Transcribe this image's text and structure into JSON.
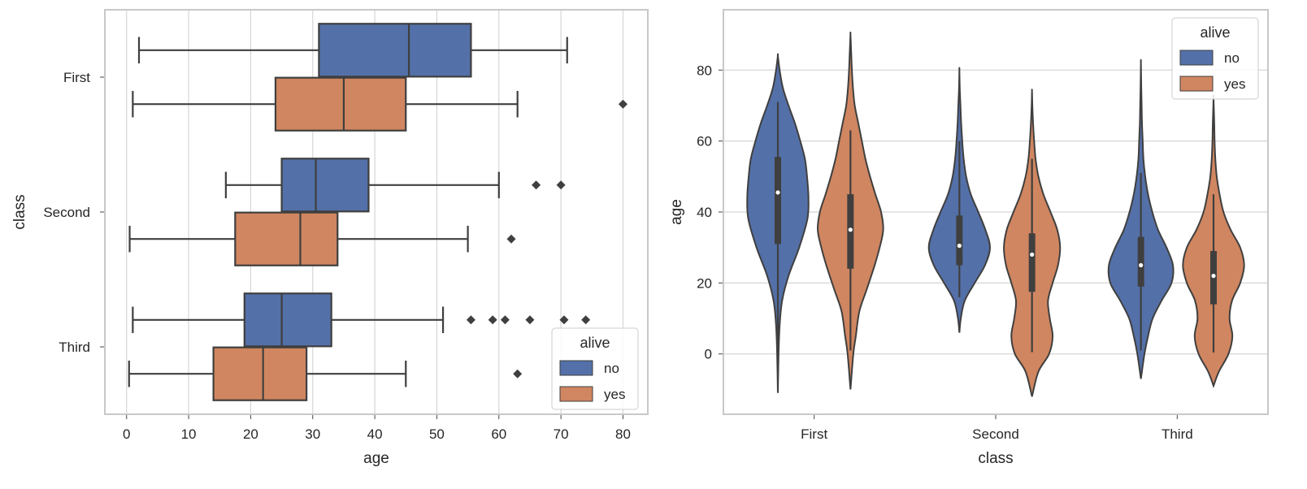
{
  "chart_data": [
    {
      "type": "boxplot",
      "orientation": "horizontal",
      "xlabel": "age",
      "ylabel": "class",
      "xlim": [
        -3.5,
        84
      ],
      "xticks": [
        0,
        10,
        20,
        30,
        40,
        50,
        60,
        70,
        80
      ],
      "categories": [
        "First",
        "Second",
        "Third"
      ],
      "hue_order": [
        "no",
        "yes"
      ],
      "grid": true,
      "legend": {
        "title": "alive",
        "position": "lower-right",
        "entries": [
          "no",
          "yes"
        ]
      },
      "boxes": [
        {
          "category": "First",
          "hue": "no",
          "whislo": 2,
          "q1": 31,
          "median": 45.5,
          "q3": 55.5,
          "whishi": 71,
          "fliers": []
        },
        {
          "category": "First",
          "hue": "yes",
          "whislo": 1,
          "q1": 24,
          "median": 35,
          "q3": 45,
          "whishi": 63,
          "fliers": [
            80
          ]
        },
        {
          "category": "Second",
          "hue": "no",
          "whislo": 16,
          "q1": 25,
          "median": 30.5,
          "q3": 39,
          "whishi": 60,
          "fliers": [
            66,
            70
          ]
        },
        {
          "category": "Second",
          "hue": "yes",
          "whislo": 0.5,
          "q1": 17.5,
          "median": 28,
          "q3": 34,
          "whishi": 55,
          "fliers": [
            62
          ]
        },
        {
          "category": "Third",
          "hue": "no",
          "whislo": 1,
          "q1": 19,
          "median": 25,
          "q3": 33,
          "whishi": 51,
          "fliers": [
            55.5,
            59,
            61,
            65,
            70.5,
            74
          ]
        },
        {
          "category": "Third",
          "hue": "yes",
          "whislo": 0.4,
          "q1": 14,
          "median": 22,
          "q3": 29,
          "whishi": 45,
          "fliers": [
            63
          ]
        }
      ]
    },
    {
      "type": "violin",
      "orientation": "vertical",
      "xlabel": "class",
      "ylabel": "age",
      "ylim": [
        -17,
        97
      ],
      "yticks": [
        0,
        20,
        40,
        60,
        80
      ],
      "categories": [
        "First",
        "Second",
        "Third"
      ],
      "hue_order": [
        "no",
        "yes"
      ],
      "grid": true,
      "legend": {
        "title": "alive",
        "position": "top-right",
        "entries": [
          "no",
          "yes"
        ]
      },
      "violins": [
        {
          "category": "First",
          "hue": "no",
          "min": -11,
          "max": 84,
          "whislo": 2,
          "q1": 31,
          "median": 45.5,
          "q3": 55.5,
          "whishi": 71,
          "density": [
            [
              -11,
              0
            ],
            [
              0,
              0.02
            ],
            [
              8,
              0.05
            ],
            [
              15,
              0.12
            ],
            [
              22,
              0.3
            ],
            [
              30,
              0.6
            ],
            [
              38,
              0.83
            ],
            [
              44,
              0.86
            ],
            [
              50,
              0.82
            ],
            [
              55,
              0.76
            ],
            [
              60,
              0.63
            ],
            [
              65,
              0.48
            ],
            [
              70,
              0.3
            ],
            [
              75,
              0.14
            ],
            [
              80,
              0.05
            ],
            [
              84,
              0
            ]
          ]
        },
        {
          "category": "First",
          "hue": "yes",
          "min": -10,
          "max": 90,
          "whislo": 1,
          "q1": 24,
          "median": 35,
          "q3": 45,
          "whishi": 63,
          "density": [
            [
              -10,
              0
            ],
            [
              0,
              0.08
            ],
            [
              5,
              0.15
            ],
            [
              12,
              0.25
            ],
            [
              18,
              0.45
            ],
            [
              25,
              0.68
            ],
            [
              30,
              0.82
            ],
            [
              35,
              0.92
            ],
            [
              40,
              0.86
            ],
            [
              45,
              0.7
            ],
            [
              50,
              0.55
            ],
            [
              55,
              0.42
            ],
            [
              60,
              0.32
            ],
            [
              65,
              0.22
            ],
            [
              70,
              0.12
            ],
            [
              75,
              0.07
            ],
            [
              80,
              0.04
            ],
            [
              85,
              0.02
            ],
            [
              90,
              0
            ]
          ]
        },
        {
          "category": "Second",
          "hue": "no",
          "min": 6,
          "max": 80,
          "whislo": 16,
          "q1": 25,
          "median": 30.5,
          "q3": 39,
          "whishi": 60,
          "density": [
            [
              6,
              0
            ],
            [
              10,
              0.04
            ],
            [
              15,
              0.15
            ],
            [
              20,
              0.43
            ],
            [
              25,
              0.72
            ],
            [
              30,
              0.86
            ],
            [
              35,
              0.73
            ],
            [
              40,
              0.53
            ],
            [
              45,
              0.32
            ],
            [
              50,
              0.19
            ],
            [
              55,
              0.12
            ],
            [
              60,
              0.08
            ],
            [
              65,
              0.05
            ],
            [
              70,
              0.03
            ],
            [
              75,
              0.01
            ],
            [
              80,
              0
            ]
          ]
        },
        {
          "category": "Second",
          "hue": "yes",
          "min": -12,
          "max": 74,
          "whislo": 0.5,
          "q1": 17.5,
          "median": 28,
          "q3": 34,
          "whishi": 55,
          "density": [
            [
              -12,
              0
            ],
            [
              -5,
              0.18
            ],
            [
              0,
              0.48
            ],
            [
              5,
              0.58
            ],
            [
              10,
              0.5
            ],
            [
              15,
              0.45
            ],
            [
              20,
              0.58
            ],
            [
              25,
              0.73
            ],
            [
              30,
              0.79
            ],
            [
              35,
              0.71
            ],
            [
              40,
              0.52
            ],
            [
              45,
              0.32
            ],
            [
              50,
              0.18
            ],
            [
              55,
              0.1
            ],
            [
              60,
              0.06
            ],
            [
              65,
              0.03
            ],
            [
              70,
              0.01
            ],
            [
              74,
              0
            ]
          ]
        },
        {
          "category": "Third",
          "hue": "no",
          "min": -7,
          "max": 82,
          "whislo": 1,
          "q1": 19,
          "median": 25,
          "q3": 33,
          "whishi": 51,
          "density": [
            [
              -7,
              0
            ],
            [
              0,
              0.1
            ],
            [
              5,
              0.2
            ],
            [
              10,
              0.33
            ],
            [
              15,
              0.58
            ],
            [
              20,
              0.86
            ],
            [
              25,
              0.9
            ],
            [
              30,
              0.72
            ],
            [
              35,
              0.48
            ],
            [
              40,
              0.32
            ],
            [
              45,
              0.2
            ],
            [
              50,
              0.12
            ],
            [
              55,
              0.07
            ],
            [
              60,
              0.05
            ],
            [
              65,
              0.03
            ],
            [
              70,
              0.02
            ],
            [
              75,
              0.01
            ],
            [
              82,
              0
            ]
          ]
        },
        {
          "category": "Third",
          "hue": "yes",
          "min": -9,
          "max": 72,
          "whislo": 0.4,
          "q1": 14,
          "median": 22,
          "q3": 29,
          "whishi": 45,
          "density": [
            [
              -9,
              0
            ],
            [
              -5,
              0.15
            ],
            [
              0,
              0.42
            ],
            [
              5,
              0.53
            ],
            [
              10,
              0.45
            ],
            [
              15,
              0.52
            ],
            [
              20,
              0.75
            ],
            [
              25,
              0.86
            ],
            [
              30,
              0.75
            ],
            [
              35,
              0.48
            ],
            [
              40,
              0.28
            ],
            [
              45,
              0.17
            ],
            [
              50,
              0.09
            ],
            [
              55,
              0.05
            ],
            [
              60,
              0.03
            ],
            [
              65,
              0.02
            ],
            [
              72,
              0
            ]
          ]
        }
      ]
    }
  ],
  "colors": {
    "no": "#5470a8",
    "yes": "#d08660",
    "line": "#3f3f3f",
    "grid": "#d6d6d6",
    "frame": "#c8c8c8",
    "text": "#262626"
  }
}
